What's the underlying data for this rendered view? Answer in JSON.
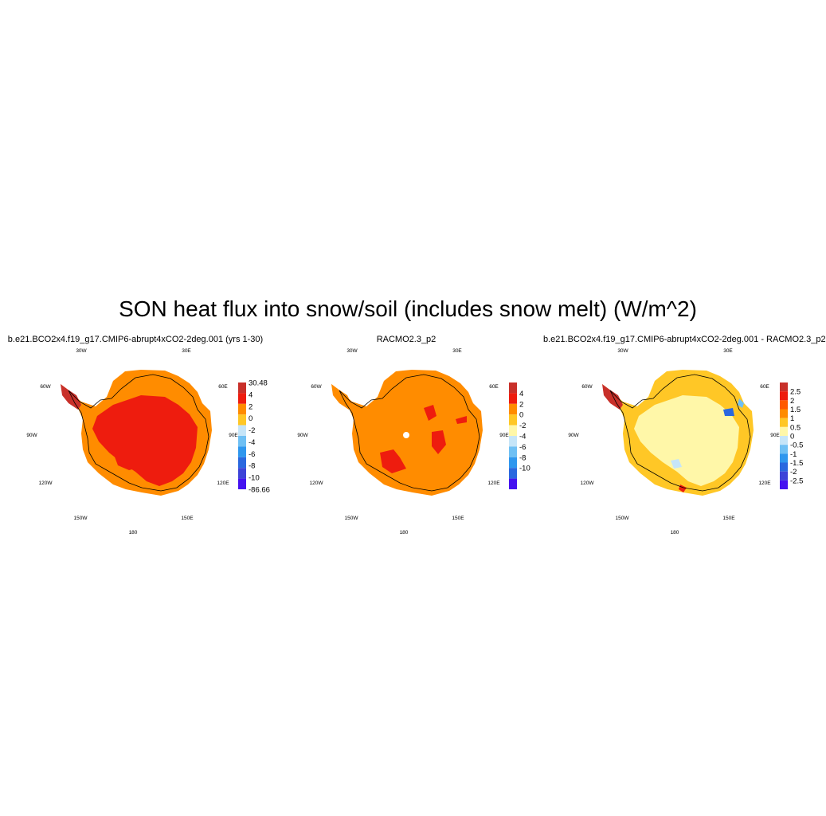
{
  "title": "SON heat flux into snow/soil (includes snow melt) (W/m^2)",
  "longitude_labels": [
    "30W",
    "30E",
    "60W",
    "60E",
    "90W",
    "90E",
    "120W",
    "120E",
    "150W",
    "150E",
    "180"
  ],
  "panels": [
    {
      "title": "b.e21.BCO2x4.f19_g17.CMIP6-abrupt4xCO2-2deg.001 (yrs 1-30)",
      "colorbar": {
        "labels": [
          "30.48",
          "4",
          "2",
          "0",
          "-2",
          "-4",
          "-6",
          "-8",
          "-10",
          "-86.66"
        ],
        "colors": [
          "#c8302a",
          "#ee1c0e",
          "#ff8c00",
          "#ffc726",
          "#c6e5f8",
          "#6fc0f4",
          "#2f97ee",
          "#2a68df",
          "#3d44d8",
          "#4412f0"
        ]
      },
      "fill": {
        "base": "#ff8c00",
        "main": "#ee1c0e",
        "peninsula": "#c8302a"
      }
    },
    {
      "title": "RACMO2.3_p2",
      "colorbar": {
        "labels": [
          "4",
          "2",
          "0",
          "-2",
          "-4",
          "-6",
          "-8",
          "-10"
        ],
        "colors": [
          "#c8302a",
          "#ee1c0e",
          "#ff8c00",
          "#ffc726",
          "#fff7a8",
          "#c6e5f8",
          "#6fc0f4",
          "#2f97ee",
          "#2a68df",
          "#4412f0"
        ]
      },
      "fill": {
        "base": "#ff8c00",
        "main": "#ee1c0e",
        "peninsula": "#ff8c00"
      }
    },
    {
      "title": "b.e21.BCO2x4.f19_g17.CMIP6-abrupt4xCO2-2deg.001 - RACMO2.3_p2",
      "colorbar": {
        "labels": [
          "2.5",
          "2",
          "1.5",
          "1",
          "0.5",
          "0",
          "-0.5",
          "-1",
          "-1.5",
          "-2",
          "-2.5"
        ],
        "colors": [
          "#c8302a",
          "#ee1c0e",
          "#ff5a00",
          "#ff8c00",
          "#ffc726",
          "#fff7a8",
          "#c6e5f8",
          "#6fc0f4",
          "#2f97ee",
          "#2a68df",
          "#3d44d8",
          "#4412f0"
        ]
      },
      "fill": {
        "base": "#ffc726",
        "main": "#fff7a8",
        "peninsula": "#c8302a"
      }
    }
  ]
}
